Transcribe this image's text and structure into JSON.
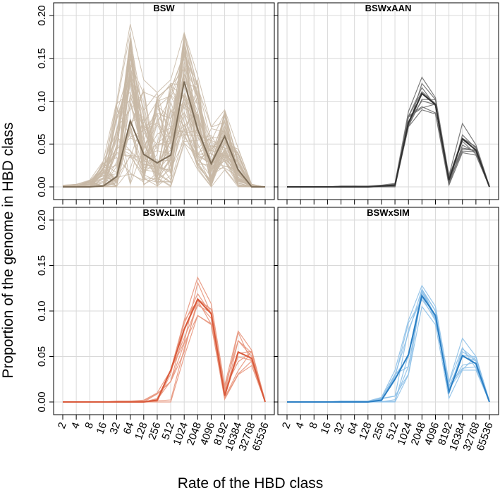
{
  "chart_data": {
    "type": "line",
    "ylabel": "Proportion of the genome in HBD class",
    "xlabel": "Rate of the HBD class",
    "x": [
      2,
      4,
      8,
      16,
      32,
      64,
      128,
      256,
      512,
      1024,
      2048,
      4096,
      8192,
      16384,
      32768,
      65536
    ],
    "x_tick_labels": [
      "2",
      "4",
      "8",
      "16",
      "32",
      "64",
      "128",
      "256",
      "512",
      "1024",
      "2048",
      "4096",
      "8192",
      "16384",
      "32768",
      "65536"
    ],
    "ylim": [
      0,
      0.2
    ],
    "y_ticks": [
      0.0,
      0.05,
      0.1,
      0.15,
      0.2
    ],
    "y_tick_labels": [
      "0.00",
      "0.05",
      "0.10",
      "0.15",
      "0.20"
    ],
    "grid": true,
    "panels": [
      {
        "title": "BSW",
        "light_color": "#c8b9a6",
        "dark_color": "#7d6d58",
        "mean": [
          0.0,
          0.0,
          0.0,
          0.001,
          0.012,
          0.077,
          0.038,
          0.028,
          0.037,
          0.123,
          0.067,
          0.027,
          0.059,
          0.02,
          0.0,
          0.0
        ],
        "individual_range": {
          "min": [
            0.0,
            0.0,
            0.0,
            0.0,
            0.0,
            0.0,
            0.0,
            0.0,
            0.0,
            0.05,
            0.02,
            0.0,
            0.02,
            0.0,
            0.0,
            0.0
          ],
          "max": [
            0.002,
            0.003,
            0.008,
            0.03,
            0.1,
            0.19,
            0.125,
            0.11,
            0.125,
            0.18,
            0.13,
            0.07,
            0.09,
            0.045,
            0.003,
            0.0
          ]
        }
      },
      {
        "title": "BSWxAAN",
        "light_color": "#6e6e6e",
        "dark_color": "#303030",
        "mean": [
          0.0,
          0.0,
          0.0,
          0.0,
          0.0,
          0.0,
          0.0,
          0.001,
          0.002,
          0.075,
          0.109,
          0.096,
          0.008,
          0.056,
          0.043,
          0.0
        ],
        "individual_range": {
          "min": [
            0.0,
            0.0,
            0.0,
            0.0,
            0.0,
            0.0,
            0.0,
            0.0,
            0.0,
            0.07,
            0.09,
            0.085,
            0.002,
            0.04,
            0.037,
            0.0
          ],
          "max": [
            0.0,
            0.0,
            0.0,
            0.0,
            0.001,
            0.001,
            0.001,
            0.002,
            0.004,
            0.088,
            0.128,
            0.104,
            0.013,
            0.074,
            0.049,
            0.001
          ]
        }
      },
      {
        "title": "BSWxLIM",
        "light_color": "#e8967d",
        "dark_color": "#d9593a",
        "mean": [
          0.0,
          0.0,
          0.0,
          0.0,
          0.0,
          0.0,
          0.0,
          0.002,
          0.035,
          0.08,
          0.113,
          0.097,
          0.007,
          0.055,
          0.048,
          0.0
        ],
        "individual_range": {
          "min": [
            0.0,
            0.0,
            0.0,
            0.0,
            0.0,
            0.0,
            0.0,
            0.0,
            0.0,
            0.05,
            0.095,
            0.085,
            0.003,
            0.03,
            0.04,
            0.0
          ],
          "max": [
            0.0,
            0.0,
            0.0,
            0.0,
            0.001,
            0.001,
            0.002,
            0.01,
            0.035,
            0.09,
            0.137,
            0.108,
            0.018,
            0.078,
            0.057,
            0.001
          ]
        }
      },
      {
        "title": "BSWxSIM",
        "light_color": "#8fc1e8",
        "dark_color": "#2b7fc4",
        "mean": [
          0.0,
          0.0,
          0.0,
          0.0,
          0.0,
          0.0,
          0.0,
          0.002,
          0.025,
          0.052,
          0.117,
          0.095,
          0.011,
          0.051,
          0.042,
          0.0
        ],
        "individual_range": {
          "min": [
            0.0,
            0.0,
            0.0,
            0.0,
            0.0,
            0.0,
            0.0,
            0.0,
            0.0,
            0.03,
            0.105,
            0.085,
            0.004,
            0.035,
            0.035,
            0.0
          ],
          "max": [
            0.0,
            0.0,
            0.0,
            0.0,
            0.001,
            0.001,
            0.001,
            0.005,
            0.035,
            0.09,
            0.128,
            0.105,
            0.022,
            0.07,
            0.05,
            0.001
          ]
        }
      }
    ]
  }
}
